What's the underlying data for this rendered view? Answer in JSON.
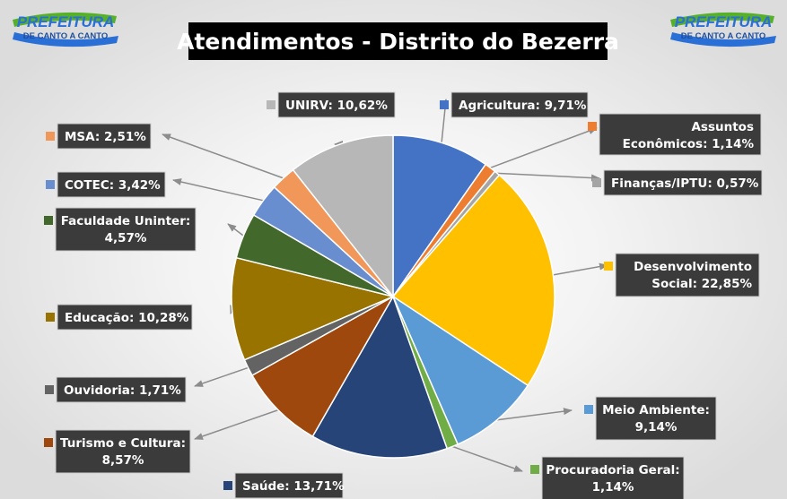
{
  "header": {
    "title": "Atendimentos - Distrito do Bezerra",
    "logo_line1": "PREFEITURA",
    "logo_line2": "DE CANTO A CANTO"
  },
  "colors": {
    "label_bg": "#3b3b3b",
    "label_border": "#cfcfcf",
    "leader": "#8c8c8c",
    "logo_blue": "#2a6fd6",
    "logo_green": "#56b02a"
  },
  "chart_data": {
    "type": "pie",
    "title": "Atendimentos - Distrito do Bezerra",
    "slices": [
      {
        "label": "Agricultura: 9,71%",
        "value": 9.71,
        "color": "#4472c4"
      },
      {
        "label": "Assuntos Econômicos: 1,14%",
        "value": 1.14,
        "color": "#ed7d31"
      },
      {
        "label": "Finanças/IPTU: 0,57%",
        "value": 0.57,
        "color": "#a5a5a5"
      },
      {
        "label": "Desenvolvimento Social: 22,85%",
        "value": 22.85,
        "color": "#ffc000"
      },
      {
        "label": "Meio Ambiente: 9,14%",
        "value": 9.14,
        "color": "#5b9bd5"
      },
      {
        "label": "Procuradoria Geral: 1,14%",
        "value": 1.14,
        "color": "#70ad47"
      },
      {
        "label": "Saúde: 13,71%",
        "value": 13.71,
        "color": "#264478"
      },
      {
        "label": "Turismo e Cultura: 8,57%",
        "value": 8.57,
        "color": "#9e480e"
      },
      {
        "label": "Ouvidoria: 1,71%",
        "value": 1.71,
        "color": "#636363"
      },
      {
        "label": "Educação: 10,28%",
        "value": 10.28,
        "color": "#997300"
      },
      {
        "label": "Faculdade Uninter: 4,57%",
        "value": 4.57,
        "color": "#43682b"
      },
      {
        "label": "COTEC: 3,42%",
        "value": 3.42,
        "color": "#698ed0"
      },
      {
        "label": "MSA: 2,51%",
        "value": 2.51,
        "color": "#f1975a"
      },
      {
        "label": "UNIRV: 10,62%",
        "value": 10.62,
        "color": "#b7b7b7"
      }
    ]
  }
}
